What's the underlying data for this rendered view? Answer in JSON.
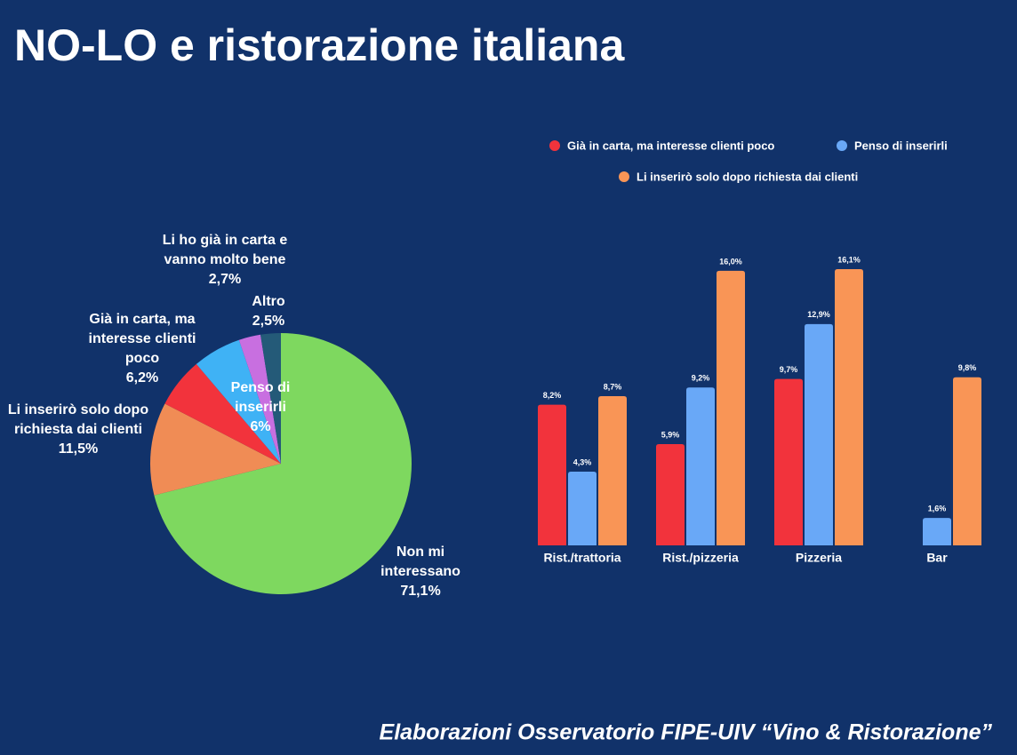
{
  "title": "NO-LO e ristorazione italiana",
  "footer": "Elaborazioni Osservatorio FIPE-UIV “Vino & Ristorazione”",
  "chart_data": [
    {
      "type": "pie",
      "categories": [
        "Non mi interessano",
        "Li inserirò solo dopo richiesta dai clienti",
        "Già in carta, ma interesse clienti poco",
        "Penso di inserirli",
        "Li ho già in carta e vanno molto bene",
        "Altro"
      ],
      "values": [
        71.1,
        11.5,
        6.2,
        6,
        2.7,
        2.5
      ],
      "value_labels": [
        "71,1%",
        "11,5%",
        "6,2%",
        "6%",
        "2,7%",
        "2,5%"
      ],
      "colors": [
        "#7ed85f",
        "#f08c55",
        "#f2333c",
        "#3fb2f5",
        "#c86fe0",
        "#245a78"
      ]
    },
    {
      "type": "bar",
      "categories": [
        "Rist./trattoria",
        "Rist./pizzeria",
        "Pizzeria",
        "Bar"
      ],
      "series": [
        {
          "name": "Già in carta, ma interesse clienti poco",
          "color": "#f2333c",
          "values": [
            8.2,
            5.9,
            9.7,
            null
          ],
          "value_labels": [
            "8,2%",
            "5,9%",
            "9,7%",
            null
          ]
        },
        {
          "name": "Penso di inserirli",
          "color": "#69a8f7",
          "values": [
            4.3,
            9.2,
            12.9,
            1.6
          ],
          "value_labels": [
            "4,3%",
            "9,2%",
            "12,9%",
            "1,6%"
          ]
        },
        {
          "name": "Li inserirò solo dopo richiesta dai clienti",
          "color": "#f99556",
          "values": [
            8.7,
            16.0,
            16.1,
            9.8
          ],
          "value_labels": [
            "8,7%",
            "16,0%",
            "16,1%",
            "9,8%"
          ]
        }
      ],
      "ylim": [
        0,
        16.1
      ]
    }
  ]
}
